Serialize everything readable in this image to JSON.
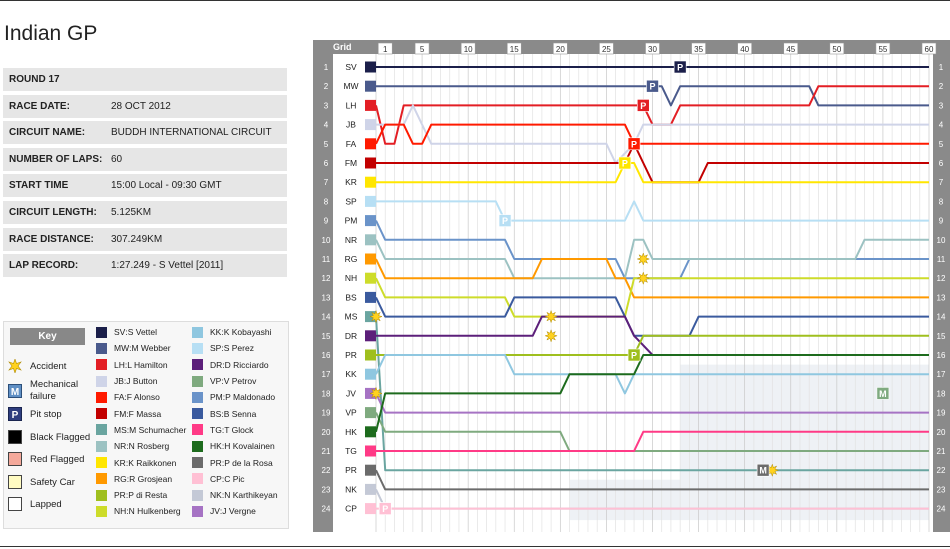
{
  "title": "Indian GP",
  "info": [
    {
      "label": "ROUND 17",
      "value": ""
    },
    {
      "label": "RACE DATE:",
      "value": "28 OCT 2012"
    },
    {
      "label": "CIRCUIT NAME:",
      "value": "BUDDH INTERNATIONAL CIRCUIT"
    },
    {
      "label": "NUMBER OF LAPS:",
      "value": "60"
    },
    {
      "label": "START TIME",
      "value": "15:00 Local - 09:30 GMT"
    },
    {
      "label": "CIRCUIT LENGTH:",
      "value": "5.125KM"
    },
    {
      "label": "RACE DISTANCE:",
      "value": "307.249KM"
    },
    {
      "label": "LAP RECORD:",
      "value": "1:27.249 - S Vettel [2011]"
    }
  ],
  "key": {
    "heading": "Key",
    "items": [
      {
        "label": "Accident",
        "icon": "accident-icon"
      },
      {
        "label": "Mechanical failure",
        "icon": "mechanical-failure-icon"
      },
      {
        "label": "Pit stop",
        "icon": "pit-stop-icon"
      },
      {
        "label": "Black Flagged",
        "icon": "black-flag-icon",
        "color": "#000000"
      },
      {
        "label": "Red Flagged",
        "icon": "red-flag-icon",
        "color": "#f4a99b"
      },
      {
        "label": "Safety Car",
        "icon": "safety-car-icon",
        "color": "#fffbc2"
      },
      {
        "label": "Lapped",
        "icon": "lapped-icon",
        "color": "#ffffff"
      }
    ]
  },
  "chart_data": {
    "type": "line",
    "title": "",
    "axis_label": "Grid",
    "x_ticks": [
      1,
      5,
      10,
      15,
      20,
      25,
      30,
      35,
      40,
      45,
      50,
      55,
      60
    ],
    "y_ticks": [
      1,
      2,
      3,
      4,
      5,
      6,
      7,
      8,
      9,
      10,
      11,
      12,
      13,
      14,
      15,
      16,
      17,
      18,
      19,
      20,
      21,
      22,
      23,
      24
    ],
    "xlim": [
      0,
      60
    ],
    "ylim": [
      1,
      24
    ],
    "drivers": [
      {
        "code": "SV",
        "name": "S Vettel",
        "color": "#1b1f4a",
        "grid": 1,
        "pos": [
          [
            0,
            1
          ],
          [
            60,
            1
          ]
        ],
        "pits": [
          33
        ]
      },
      {
        "code": "MW",
        "name": "M Webber",
        "color": "#4a5a8c",
        "grid": 2,
        "pos": [
          [
            0,
            2
          ],
          [
            30,
            2
          ],
          [
            31,
            2
          ],
          [
            32,
            3
          ],
          [
            33,
            2
          ],
          [
            47,
            2
          ],
          [
            48,
            3
          ],
          [
            60,
            3
          ]
        ],
        "pits": [
          30
        ]
      },
      {
        "code": "LH",
        "name": "L Hamilton",
        "color": "#e31e24",
        "grid": 3,
        "pos": [
          [
            0,
            3
          ],
          [
            1,
            5
          ],
          [
            2,
            5
          ],
          [
            3,
            3
          ],
          [
            29,
            3
          ],
          [
            30,
            4
          ],
          [
            32,
            4
          ],
          [
            33,
            3
          ],
          [
            47,
            3
          ],
          [
            48,
            2
          ],
          [
            60,
            2
          ]
        ],
        "pits": [
          29
        ]
      },
      {
        "code": "JB",
        "name": "J Button",
        "color": "#cfd4e8",
        "grid": 4,
        "pos": [
          [
            0,
            4
          ],
          [
            3,
            4
          ],
          [
            4,
            3
          ],
          [
            5,
            4
          ],
          [
            6,
            5
          ],
          [
            24,
            5
          ],
          [
            25,
            5
          ],
          [
            26,
            6
          ],
          [
            28,
            5
          ],
          [
            29,
            4
          ],
          [
            31,
            4
          ],
          [
            32,
            4
          ],
          [
            33,
            4
          ],
          [
            60,
            4
          ]
        ],
        "pits": []
      },
      {
        "code": "FA",
        "name": "F Alonso",
        "color": "#ff1a00",
        "grid": 5,
        "pos": [
          [
            0,
            5
          ],
          [
            1,
            4
          ],
          [
            3,
            4
          ],
          [
            4,
            5
          ],
          [
            5,
            5
          ],
          [
            6,
            4
          ],
          [
            27,
            4
          ],
          [
            28,
            5
          ],
          [
            29,
            5
          ],
          [
            30,
            5
          ],
          [
            60,
            5
          ]
        ],
        "pits": [
          28
        ]
      },
      {
        "code": "FM",
        "name": "F Massa",
        "color": "#c20000",
        "grid": 6,
        "pos": [
          [
            0,
            6
          ],
          [
            27,
            6
          ],
          [
            28,
            5
          ],
          [
            29,
            6
          ],
          [
            30,
            7
          ],
          [
            35,
            7
          ],
          [
            36,
            6
          ],
          [
            60,
            6
          ]
        ],
        "pits": []
      },
      {
        "code": "KR",
        "name": "K Raikkonen",
        "color": "#ffe600",
        "grid": 7,
        "pos": [
          [
            0,
            7
          ],
          [
            26,
            7
          ],
          [
            27,
            6
          ],
          [
            28,
            6
          ],
          [
            29,
            7
          ],
          [
            60,
            7
          ]
        ],
        "pits": [
          27
        ]
      },
      {
        "code": "SP",
        "name": "S Perez",
        "color": "#b7dff4",
        "grid": 8,
        "pos": [
          [
            0,
            8
          ],
          [
            13,
            8
          ],
          [
            14,
            9
          ],
          [
            27,
            9
          ],
          [
            28,
            8
          ],
          [
            29,
            9
          ],
          [
            60,
            9
          ]
        ],
        "pits": [
          14
        ]
      },
      {
        "code": "PM",
        "name": "P Maldonado",
        "color": "#6a93c9",
        "grid": 9,
        "pos": [
          [
            0,
            9
          ],
          [
            1,
            10
          ],
          [
            14,
            10
          ],
          [
            15,
            11
          ],
          [
            26,
            11
          ],
          [
            27,
            12
          ],
          [
            33,
            12
          ],
          [
            34,
            11
          ],
          [
            60,
            11
          ]
        ],
        "pits": []
      },
      {
        "code": "NR",
        "name": "N Rosberg",
        "color": "#9cc2c2",
        "grid": 10,
        "pos": [
          [
            0,
            10
          ],
          [
            1,
            11
          ],
          [
            14,
            11
          ],
          [
            15,
            12
          ],
          [
            27,
            12
          ],
          [
            28,
            10
          ],
          [
            29,
            10
          ],
          [
            30,
            11
          ],
          [
            52,
            11
          ],
          [
            53,
            10
          ],
          [
            60,
            10
          ]
        ],
        "pits": []
      },
      {
        "code": "RG",
        "name": "R Grosjean",
        "color": "#ff9900",
        "grid": 11,
        "pos": [
          [
            0,
            11
          ],
          [
            1,
            12
          ],
          [
            17,
            12
          ],
          [
            18,
            11
          ],
          [
            25,
            11
          ],
          [
            26,
            12
          ],
          [
            27,
            12
          ],
          [
            28,
            13
          ],
          [
            60,
            13
          ]
        ],
        "pits": []
      },
      {
        "code": "NH",
        "name": "N Hulkenberg",
        "color": "#cddc2a",
        "grid": 12,
        "pos": [
          [
            0,
            12
          ],
          [
            1,
            13
          ],
          [
            14,
            13
          ],
          [
            15,
            14
          ],
          [
            27,
            14
          ],
          [
            28,
            12
          ],
          [
            29,
            12
          ],
          [
            60,
            12
          ]
        ],
        "pits": []
      },
      {
        "code": "BS",
        "name": "B Senna",
        "color": "#3a5a9e",
        "grid": 13,
        "pos": [
          [
            0,
            13
          ],
          [
            1,
            14
          ],
          [
            14,
            14
          ],
          [
            15,
            13
          ],
          [
            26,
            13
          ],
          [
            27,
            14
          ],
          [
            28,
            15
          ],
          [
            34,
            15
          ],
          [
            35,
            14
          ],
          [
            60,
            14
          ]
        ],
        "pits": []
      },
      {
        "code": "MS",
        "name": "M Schumacher",
        "color": "#6aa5a0",
        "grid": 14,
        "pos": [
          [
            0,
            14
          ],
          [
            1,
            22
          ],
          [
            60,
            22
          ]
        ],
        "pits": []
      },
      {
        "code": "DR",
        "name": "D Ricciardo",
        "color": "#5c1f7a",
        "grid": 15,
        "pos": [
          [
            0,
            15
          ],
          [
            1,
            15
          ],
          [
            17,
            15
          ],
          [
            18,
            14
          ],
          [
            27,
            14
          ],
          [
            28,
            15
          ],
          [
            30,
            16
          ],
          [
            60,
            16
          ]
        ],
        "pits": []
      },
      {
        "code": "PR",
        "name": "P di Resta",
        "color": "#9fbf1e",
        "grid": 16,
        "pos": [
          [
            0,
            16
          ],
          [
            1,
            16
          ],
          [
            28,
            16
          ],
          [
            29,
            15
          ],
          [
            60,
            15
          ]
        ],
        "pits": [
          28
        ]
      },
      {
        "code": "KK",
        "name": "K Kobayashi",
        "color": "#8fc7e0",
        "grid": 17,
        "pos": [
          [
            0,
            17
          ],
          [
            1,
            16
          ],
          [
            14,
            16
          ],
          [
            15,
            17
          ],
          [
            26,
            17
          ],
          [
            27,
            18
          ],
          [
            28,
            17
          ],
          [
            60,
            17
          ]
        ],
        "pits": []
      },
      {
        "code": "JV",
        "name": "J Vergne",
        "color": "#a673c4",
        "grid": 18,
        "pos": [
          [
            0,
            18
          ],
          [
            1,
            19
          ],
          [
            60,
            19
          ]
        ],
        "pits": []
      },
      {
        "code": "VP",
        "name": "V Petrov",
        "color": "#7faa7f",
        "grid": 19,
        "pos": [
          [
            0,
            19
          ],
          [
            1,
            20
          ],
          [
            20,
            20
          ],
          [
            21,
            21
          ],
          [
            60,
            21
          ]
        ],
        "pits": []
      },
      {
        "code": "HK",
        "name": "H Kovalainen",
        "color": "#1d6b1d",
        "grid": 20,
        "pos": [
          [
            0,
            20
          ],
          [
            1,
            18
          ],
          [
            20,
            18
          ],
          [
            21,
            17
          ],
          [
            28,
            17
          ],
          [
            29,
            16
          ],
          [
            60,
            16
          ]
        ],
        "pits": []
      },
      {
        "code": "TG",
        "name": "T Glock",
        "color": "#ff3a86",
        "grid": 21,
        "pos": [
          [
            0,
            21
          ],
          [
            1,
            21
          ],
          [
            28,
            21
          ],
          [
            29,
            20
          ],
          [
            60,
            20
          ]
        ],
        "pits": []
      },
      {
        "code": "PR",
        "name": "P de la Rosa",
        "color": "#6b6b6b",
        "grid": 22,
        "pos": [
          [
            0,
            22
          ],
          [
            1,
            23
          ],
          [
            60,
            23
          ]
        ],
        "pits": []
      },
      {
        "code": "NK",
        "name": "N Karthikeyan",
        "color": "#c4c9d6",
        "grid": 23,
        "pos": [
          [
            0,
            23
          ],
          [
            1,
            24
          ],
          [
            60,
            24
          ]
        ],
        "pits": [
          1
        ]
      },
      {
        "code": "CP",
        "name": "C Pic",
        "color": "#ffc0d4",
        "grid": 24,
        "pos": [
          [
            0,
            24
          ],
          [
            1,
            24
          ],
          [
            60,
            24
          ]
        ],
        "pits": [
          1
        ]
      }
    ]
  }
}
